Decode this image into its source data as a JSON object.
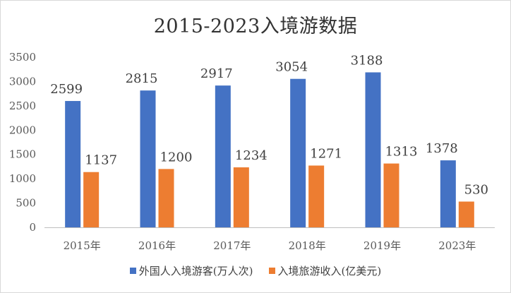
{
  "chart_data": {
    "type": "bar",
    "title": "2015-2023入境游数据",
    "categories": [
      "2015年",
      "2016年",
      "2017年",
      "2018年",
      "2019年",
      "2023年"
    ],
    "series": [
      {
        "name": "外国人入境游客(万人次)",
        "values": [
          2599,
          2815,
          2917,
          3054,
          3188,
          1378
        ],
        "color": "#4472C4"
      },
      {
        "name": "入境旅游收入(亿美元)",
        "values": [
          1137,
          1200,
          1234,
          1271,
          1313,
          530
        ],
        "color": "#ED7D31"
      }
    ],
    "ylim": [
      0,
      3500
    ],
    "yticks": [
      0,
      500,
      1000,
      1500,
      2000,
      2500,
      3000,
      3500
    ],
    "xlabel": "",
    "ylabel": "",
    "grid": false,
    "legend_position": "bottom",
    "data_labels": true
  }
}
